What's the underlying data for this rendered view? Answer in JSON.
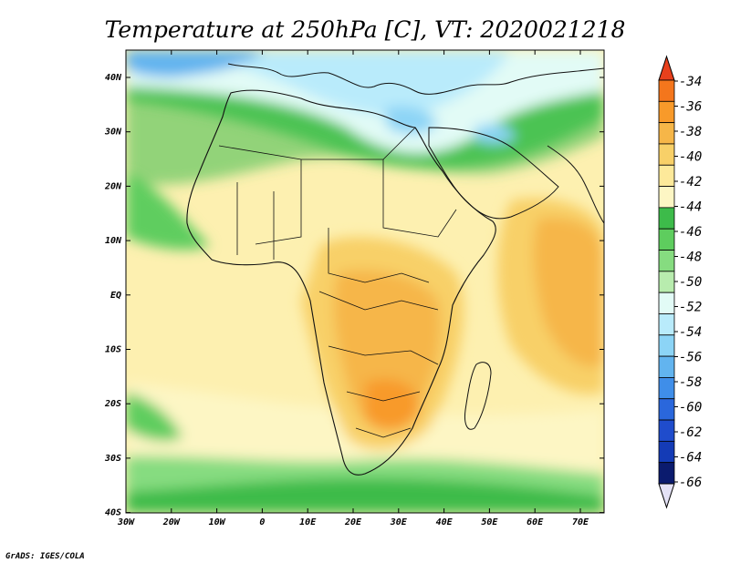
{
  "title": "Temperature at 250hPa [C], VT: 2020021218",
  "credit": "GrADS: IGES/COLA",
  "map": {
    "lon_labels": [
      "30W",
      "20W",
      "10W",
      "0",
      "10E",
      "20E",
      "30E",
      "40E",
      "50E",
      "60E",
      "70E"
    ],
    "lat_labels": [
      "40N",
      "30N",
      "20N",
      "10N",
      "EQ",
      "10S",
      "20S",
      "30S",
      "40S"
    ]
  },
  "colorbar": {
    "labels": [
      "-34",
      "-36",
      "-38",
      "-40",
      "-42",
      "-44",
      "-46",
      "-48",
      "-50",
      "-52",
      "-54",
      "-56",
      "-58",
      "-60",
      "-62",
      "-64",
      "-66"
    ],
    "colors": [
      "#e8401c",
      "#f4761c",
      "#f89a2a",
      "#f6b648",
      "#f8d068",
      "#fde99a",
      "#fdf6c4",
      "#3dbb4a",
      "#5ecd5e",
      "#86dc80",
      "#b8ecae",
      "#e2fbf6",
      "#b9ebfb",
      "#8cd4f6",
      "#62b4ef",
      "#3f8ee9",
      "#2a67dc",
      "#1f4ccc",
      "#143bb6",
      "#0b1b6e",
      "#e4e2f6"
    ]
  }
}
